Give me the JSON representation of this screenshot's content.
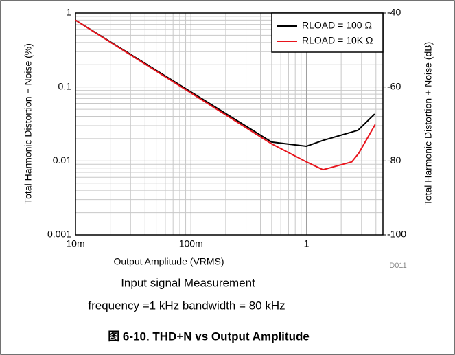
{
  "chart_data": {
    "type": "line",
    "xlabel": "Output Amplitude (VRMS)",
    "ylabel": "Total Harmonic Distortion + Noise (%)",
    "y2label": "Total Harmonic Distortion + Noise (dB)",
    "annotation": "D011",
    "caption_lines": [
      "Input signal      Measurement",
      "frequency =1 kHz  bandwidth = 80 kHz"
    ],
    "figure_caption": "图 6-10. THD+N vs Output Amplitude",
    "xscale": "log",
    "yscale": "log",
    "grid": true,
    "legend": "upper right",
    "xlim": [
      0.01,
      4.6
    ],
    "xticks": [
      {
        "value": 0.01,
        "label": "10m"
      },
      {
        "value": 0.1,
        "label": "100m"
      },
      1
    ],
    "xminorticks": [
      0.02,
      0.03,
      0.04,
      0.05,
      0.06,
      0.07,
      0.08,
      0.09,
      0.2,
      0.3,
      0.4,
      0.5,
      0.6,
      0.7,
      0.8,
      0.9,
      2,
      3,
      4
    ],
    "ylim": [
      0.001,
      1
    ],
    "yticks": [
      0.001,
      0.01,
      0.1,
      1
    ],
    "yminorticks": [
      0.002,
      0.003,
      0.004,
      0.005,
      0.006,
      0.007,
      0.008,
      0.009,
      0.02,
      0.03,
      0.04,
      0.05,
      0.06,
      0.07,
      0.08,
      0.09,
      0.2,
      0.3,
      0.4,
      0.5,
      0.6,
      0.7,
      0.8,
      0.9
    ],
    "y2lim": [
      -100,
      -40
    ],
    "y2ticks": [
      -100,
      -80,
      -60,
      -40
    ],
    "series": [
      {
        "name": "RLOAD = 100 Ω",
        "color": "#000000",
        "x": [
          0.01,
          0.5,
          1,
          1.4,
          2.8,
          3.9
        ],
        "values": [
          0.8,
          0.018,
          0.0158,
          0.019,
          0.026,
          0.043
        ]
      },
      {
        "name": "RLOAD = 10K Ω",
        "color": "#e8141c",
        "x": [
          0.01,
          0.5,
          1,
          1.39,
          2.47,
          2.83,
          3.94
        ],
        "values": [
          0.8,
          0.017,
          0.0097,
          0.0076,
          0.0097,
          0.0126,
          0.031
        ]
      }
    ]
  }
}
